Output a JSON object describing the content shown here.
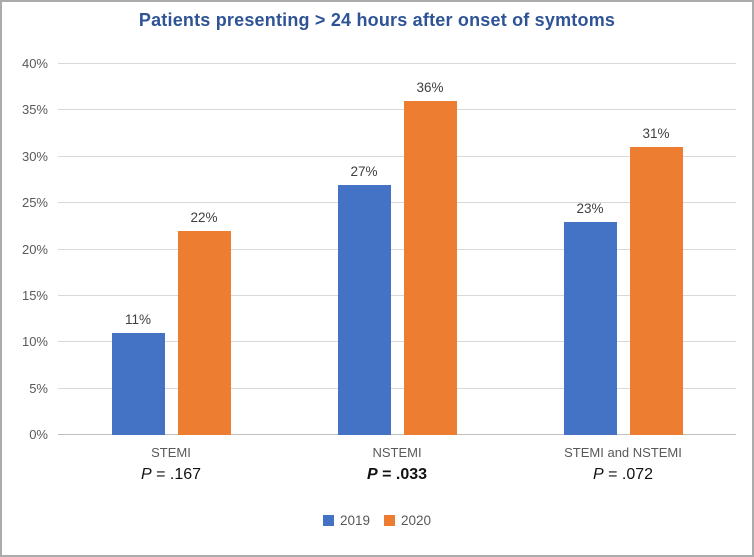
{
  "title": "Patients presenting > 24 hours after onset of symtoms",
  "colors": {
    "title_blue": "#2F5496",
    "series_2019_blue": "#4472C4",
    "series_2020_orange": "#ED7D31",
    "gridline_gray": "#D9D9D9",
    "axis_line_gray": "#BFBFBF",
    "tick_label_gray": "#595959",
    "data_label_gray": "#404040",
    "frame_border_gray": "#ABABAB"
  },
  "legend": {
    "position": "bottom",
    "entries": [
      {
        "label": "2019",
        "color": "#4472C4"
      },
      {
        "label": "2020",
        "color": "#ED7D31"
      }
    ]
  },
  "chart_data": {
    "type": "bar",
    "title": "Patients presenting > 24 hours after onset of symtoms",
    "categories": [
      "STEMI",
      "NSTEMI",
      "STEMI and NSTEMI"
    ],
    "category_p_values": [
      {
        "label": "P = .167",
        "bold": false
      },
      {
        "label": "P = .033",
        "bold": true
      },
      {
        "label": "P = .072",
        "bold": false
      }
    ],
    "series": [
      {
        "name": "2019",
        "color": "#4472C4",
        "values": [
          11,
          27,
          23
        ],
        "labels": [
          "11%",
          "27%",
          "23%"
        ]
      },
      {
        "name": "2020",
        "color": "#ED7D31",
        "values": [
          22,
          36,
          31
        ],
        "labels": [
          "22%",
          "36%",
          "31%"
        ]
      }
    ],
    "xlabel": "",
    "ylabel": "",
    "ylim": [
      0,
      40
    ],
    "ytick_step": 5,
    "ytick_labels": [
      "0%",
      "5%",
      "10%",
      "15%",
      "20%",
      "25%",
      "30%",
      "35%",
      "40%"
    ],
    "grid": true,
    "legend_position": "bottom"
  }
}
